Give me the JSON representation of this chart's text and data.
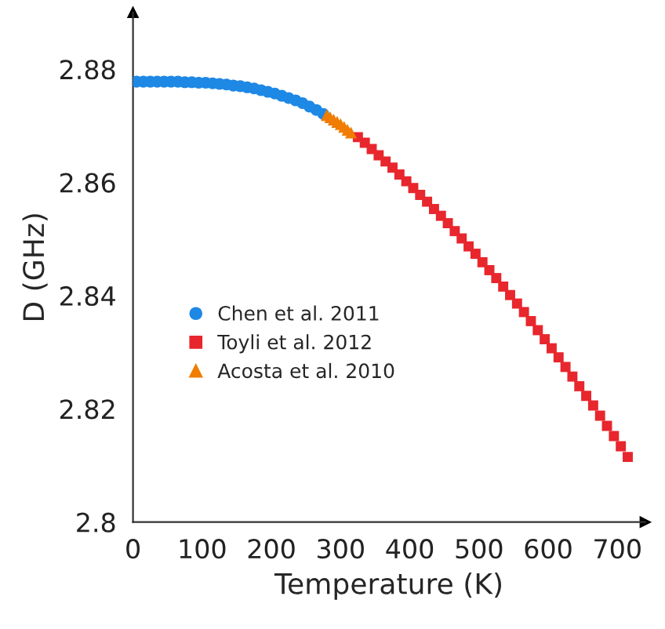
{
  "chart_data": {
    "type": "scatter",
    "xlabel": "Temperature (K)",
    "ylabel": "D (GHz)",
    "xlim": [
      0,
      740
    ],
    "ylim": [
      2.8,
      2.89
    ],
    "xticks": [
      0,
      100,
      200,
      300,
      400,
      500,
      600,
      700
    ],
    "yticks": [
      2.8,
      2.82,
      2.84,
      2.86,
      2.88
    ],
    "grid": false,
    "legend": "left",
    "series": [
      {
        "name": "Chen et al. 2011",
        "color": "#1e88e5",
        "marker": "circle",
        "x": [
          5,
          15,
          25,
          35,
          45,
          55,
          65,
          75,
          85,
          95,
          105,
          115,
          125,
          135,
          145,
          155,
          165,
          175,
          185,
          195,
          205,
          215,
          225,
          235,
          245,
          255,
          265,
          275
        ],
        "values": [
          2.8778,
          2.8778,
          2.8778,
          2.8778,
          2.8778,
          2.8778,
          2.8778,
          2.8777,
          2.8777,
          2.8776,
          2.8776,
          2.8775,
          2.8774,
          2.8773,
          2.8771,
          2.877,
          2.8768,
          2.8766,
          2.8763,
          2.876,
          2.8757,
          2.8753,
          2.8749,
          2.8745,
          2.874,
          2.8734,
          2.8728,
          2.8721
        ]
      },
      {
        "name": "Toyli et al. 2012",
        "color": "#e8262d",
        "marker": "square",
        "x": [
          325,
          335,
          345,
          355,
          365,
          375,
          385,
          395,
          405,
          415,
          425,
          435,
          445,
          455,
          465,
          475,
          485,
          495,
          505,
          515,
          525,
          535,
          545,
          555,
          565,
          575,
          585,
          595,
          605,
          615,
          625,
          635,
          645,
          655,
          665,
          675,
          685,
          695,
          705,
          715
        ],
        "values": [
          2.868,
          2.867,
          2.8659,
          2.8648,
          2.8637,
          2.8626,
          2.8614,
          2.8602,
          2.859,
          2.8578,
          2.8566,
          2.8553,
          2.8541,
          2.8528,
          2.8514,
          2.8501,
          2.8487,
          2.8474,
          2.8459,
          2.8445,
          2.8431,
          2.8416,
          2.8401,
          2.8386,
          2.8371,
          2.8355,
          2.8339,
          2.8323,
          2.8307,
          2.8291,
          2.8274,
          2.8257,
          2.824,
          2.8223,
          2.8206,
          2.8188,
          2.817,
          2.8152,
          2.8134,
          2.8115
        ]
      },
      {
        "name": "Acosta et al. 2010",
        "color": "#f07c00",
        "marker": "triangle",
        "x": [
          280,
          285,
          290,
          295,
          300,
          305,
          310,
          315
        ],
        "values": [
          2.8719,
          2.8715,
          2.8711,
          2.8707,
          2.8703,
          2.8698,
          2.8693,
          2.8688
        ]
      }
    ]
  }
}
